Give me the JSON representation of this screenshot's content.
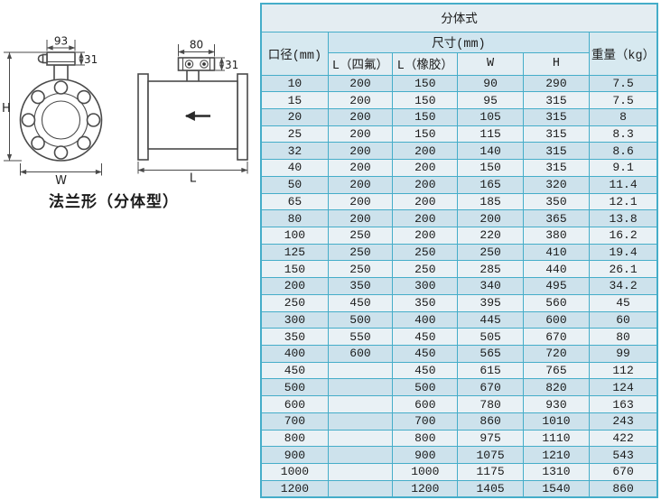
{
  "diagram": {
    "caption": "法兰形（分体型）",
    "front": {
      "width_dim": "93",
      "box_height_dim": "31",
      "height_label": "H",
      "width_label": "W"
    },
    "side": {
      "width_dim": "80",
      "box_height_dim": "31",
      "length_label": "L"
    }
  },
  "table": {
    "title": "分体式",
    "headers": {
      "diameter": "口径(mm)",
      "size_group": "尺寸(mm)",
      "weight": "重量（kg）",
      "size_sub": [
        "L（四氟）",
        "L（橡胶）",
        "W",
        "H"
      ]
    },
    "rows": [
      [
        "10",
        "200",
        "150",
        "90",
        "290",
        "7.5"
      ],
      [
        "15",
        "200",
        "150",
        "95",
        "315",
        "7.5"
      ],
      [
        "20",
        "200",
        "150",
        "105",
        "315",
        "8"
      ],
      [
        "25",
        "200",
        "150",
        "115",
        "315",
        "8.3"
      ],
      [
        "32",
        "200",
        "200",
        "140",
        "315",
        "8.6"
      ],
      [
        "40",
        "200",
        "200",
        "150",
        "315",
        "9.1"
      ],
      [
        "50",
        "200",
        "200",
        "165",
        "320",
        "11.4"
      ],
      [
        "65",
        "200",
        "200",
        "185",
        "350",
        "12.1"
      ],
      [
        "80",
        "200",
        "200",
        "200",
        "365",
        "13.8"
      ],
      [
        "100",
        "250",
        "200",
        "220",
        "380",
        "16.2"
      ],
      [
        "125",
        "250",
        "250",
        "250",
        "410",
        "19.4"
      ],
      [
        "150",
        "250",
        "250",
        "285",
        "440",
        "26.1"
      ],
      [
        "200",
        "350",
        "300",
        "340",
        "495",
        "34.2"
      ],
      [
        "250",
        "450",
        "350",
        "395",
        "560",
        "45"
      ],
      [
        "300",
        "500",
        "400",
        "445",
        "600",
        "60"
      ],
      [
        "350",
        "550",
        "450",
        "505",
        "670",
        "80"
      ],
      [
        "400",
        "600",
        "450",
        "565",
        "720",
        "99"
      ],
      [
        "450",
        "",
        "450",
        "615",
        "765",
        "112"
      ],
      [
        "500",
        "",
        "500",
        "670",
        "820",
        "124"
      ],
      [
        "600",
        "",
        "600",
        "780",
        "930",
        "163"
      ],
      [
        "700",
        "",
        "700",
        "860",
        "1010",
        "243"
      ],
      [
        "800",
        "",
        "800",
        "975",
        "1110",
        "422"
      ],
      [
        "900",
        "",
        "900",
        "1075",
        "1210",
        "543"
      ],
      [
        "1000",
        "",
        "1000",
        "1175",
        "1310",
        "670"
      ],
      [
        "1200",
        "",
        "1200",
        "1405",
        "1540",
        "860"
      ]
    ]
  },
  "colors": {
    "grid": "#45adc9",
    "row_blue": "#cde2ec",
    "row_light": "#e9f1f5",
    "header_blue": "#d0e5ef",
    "line": "#4a4a4a"
  }
}
